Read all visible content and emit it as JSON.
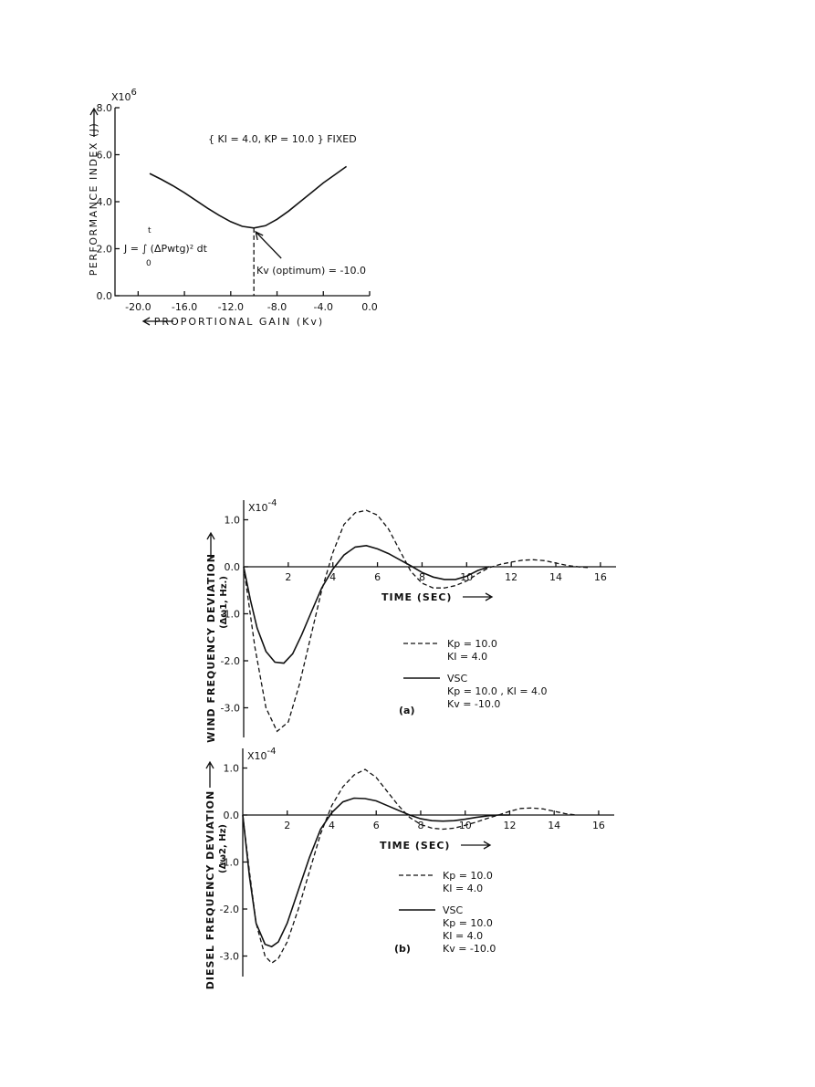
{
  "chart_data": [
    {
      "type": "line",
      "xlabel": "PROPORTIONAL GAIN (Kv)",
      "ylabel": "PERFORMANCE INDEX (J)",
      "y_multiplier": "X10",
      "y_exponent": "6",
      "xlim": [
        -22.0,
        0.0
      ],
      "ylim": [
        0.0,
        8.0
      ],
      "x_ticks": [
        "-20.0",
        "-16.0",
        "-12.0",
        "-8.0",
        "-4.0",
        "0.0"
      ],
      "y_ticks": [
        "0.0",
        "2.0",
        "4.0",
        "6.0",
        "8.0"
      ],
      "x_tick_values": [
        -20,
        -16,
        -12,
        -8,
        -4,
        0
      ],
      "y_tick_values": [
        0,
        2,
        4,
        6,
        8
      ],
      "annotation_fixed": "{ KI = 4.0, KP = 10.0 } FIXED",
      "annotation_formula": "J = ∫ (ΔPwtg)² dt",
      "annotation_formula_lower": "0",
      "annotation_formula_upper": "t",
      "annotation_optimum": "Kv (optimum) = -10.0",
      "optimum_x": -10.0,
      "series": [
        {
          "style": "solid",
          "x": [
            -19.0,
            -18.0,
            -17.0,
            -16.0,
            -15.0,
            -14.0,
            -13.0,
            -12.0,
            -11.0,
            -10.0,
            -9.0,
            -8.0,
            -7.0,
            -6.0,
            -5.0,
            -4.0,
            -3.0,
            -2.0
          ],
          "y": [
            5.2,
            4.95,
            4.68,
            4.38,
            4.05,
            3.72,
            3.42,
            3.15,
            2.95,
            2.88,
            2.98,
            3.25,
            3.6,
            4.0,
            4.4,
            4.8,
            5.15,
            5.5
          ]
        }
      ]
    },
    {
      "type": "line",
      "xlabel": "TIME (SEC)",
      "ylabel": "WIND FREQUENCY DEVIATION",
      "ylabel2": "(Δω1, Hz.)",
      "y_multiplier": "X10",
      "y_exponent": "-4",
      "panel_label": "(a)",
      "xlim": [
        0,
        16.7
      ],
      "ylim": [
        -3.7,
        1.45
      ],
      "x_ticks": [
        "2",
        "4",
        "6",
        "8",
        "10",
        "12",
        "14",
        "16"
      ],
      "y_ticks": [
        "1.0",
        "0.0",
        "-1.0",
        "-2.0",
        "-3.0"
      ],
      "x_tick_values": [
        2,
        4,
        6,
        8,
        10,
        12,
        14,
        16
      ],
      "y_tick_values": [
        1,
        0,
        -1,
        -2,
        -3
      ],
      "legend": {
        "dashed": [
          "Kp = 10.0",
          "KI = 4.0"
        ],
        "solid": [
          "VSC",
          "Kp = 10.0 , KI = 4.0",
          "Kv = -10.0"
        ]
      },
      "series": [
        {
          "style": "dashed",
          "x": [
            0,
            0.5,
            1.0,
            1.5,
            2.0,
            2.5,
            3.0,
            3.5,
            4.0,
            4.5,
            5.0,
            5.5,
            6.0,
            6.5,
            7.0,
            7.5,
            8.0,
            8.5,
            9.0,
            9.5,
            10.0,
            10.5,
            11.0,
            11.5,
            12.0,
            12.5,
            13.0,
            13.5,
            14.0,
            14.5,
            15.0,
            15.5
          ],
          "y": [
            0.0,
            -1.7,
            -3.0,
            -3.5,
            -3.3,
            -2.5,
            -1.5,
            -0.5,
            0.3,
            0.9,
            1.15,
            1.2,
            1.1,
            0.8,
            0.35,
            -0.1,
            -0.35,
            -0.45,
            -0.45,
            -0.4,
            -0.3,
            -0.15,
            -0.02,
            0.05,
            0.1,
            0.14,
            0.15,
            0.13,
            0.08,
            0.03,
            0.0,
            -0.02
          ]
        },
        {
          "style": "solid",
          "x": [
            0,
            0.3,
            0.6,
            1.0,
            1.4,
            1.8,
            2.2,
            2.6,
            3.0,
            3.5,
            4.0,
            4.5,
            5.0,
            5.5,
            6.0,
            6.5,
            7.0,
            7.5,
            8.0,
            8.5,
            9.0,
            9.5,
            10.0,
            10.5,
            11.0
          ],
          "y": [
            0.0,
            -0.7,
            -1.3,
            -1.8,
            -2.03,
            -2.05,
            -1.85,
            -1.45,
            -1.0,
            -0.45,
            -0.05,
            0.25,
            0.42,
            0.45,
            0.38,
            0.28,
            0.15,
            0.02,
            -0.12,
            -0.22,
            -0.27,
            -0.27,
            -0.2,
            -0.08,
            0.0
          ]
        }
      ]
    },
    {
      "type": "line",
      "xlabel": "TIME (SEC)",
      "ylabel": "DIESEL FREQUENCY DEVIATION",
      "ylabel2": "(Δω2, Hz)",
      "y_multiplier": "X10",
      "y_exponent": "-4",
      "panel_label": "(b)",
      "xlim": [
        0,
        16.7
      ],
      "ylim": [
        -3.7,
        1.45
      ],
      "x_ticks": [
        "2",
        "4",
        "6",
        "8",
        "10",
        "12",
        "14",
        "16"
      ],
      "y_ticks": [
        "1.0",
        "0.0",
        "-1.0",
        "-2.0",
        "-3.0"
      ],
      "x_tick_values": [
        2,
        4,
        6,
        8,
        10,
        12,
        14,
        16
      ],
      "y_tick_values": [
        1,
        0,
        -1,
        -2,
        -3
      ],
      "legend": {
        "dashed": [
          "Kp = 10.0",
          "KI = 4.0"
        ],
        "solid": [
          "VSC",
          "Kp = 10.0",
          "KI = 4.0",
          "Kv = -10.0"
        ]
      },
      "series": [
        {
          "style": "dashed",
          "x": [
            0,
            0.3,
            0.6,
            1.0,
            1.3,
            1.6,
            2.0,
            2.5,
            3.0,
            3.5,
            4.0,
            4.5,
            5.0,
            5.5,
            6.0,
            6.5,
            7.0,
            7.5,
            8.0,
            8.5,
            9.0,
            9.5,
            10.0,
            10.5,
            11.0,
            11.5,
            12.0,
            12.5,
            13.0,
            13.5,
            14.0,
            14.5,
            15.0
          ],
          "y": [
            0.0,
            -1.2,
            -2.3,
            -3.0,
            -3.15,
            -3.05,
            -2.7,
            -2.0,
            -1.2,
            -0.4,
            0.2,
            0.6,
            0.85,
            0.97,
            0.8,
            0.5,
            0.2,
            -0.05,
            -0.2,
            -0.28,
            -0.3,
            -0.28,
            -0.22,
            -0.15,
            -0.07,
            0.0,
            0.08,
            0.14,
            0.15,
            0.13,
            0.08,
            0.03,
            0.0
          ]
        },
        {
          "style": "solid",
          "x": [
            0,
            0.3,
            0.6,
            1.0,
            1.3,
            1.6,
            2.0,
            2.5,
            3.0,
            3.5,
            4.0,
            4.5,
            5.0,
            5.5,
            6.0,
            6.5,
            7.0,
            7.5,
            8.0,
            8.5,
            9.0,
            9.5,
            10.0,
            10.5,
            11.0,
            11.5,
            12.0
          ],
          "y": [
            0.0,
            -1.3,
            -2.3,
            -2.75,
            -2.8,
            -2.7,
            -2.3,
            -1.6,
            -0.9,
            -0.3,
            0.05,
            0.28,
            0.36,
            0.35,
            0.3,
            0.2,
            0.1,
            0.0,
            -0.08,
            -0.12,
            -0.13,
            -0.12,
            -0.09,
            -0.05,
            -0.02,
            0.0,
            0.0
          ]
        }
      ]
    }
  ]
}
